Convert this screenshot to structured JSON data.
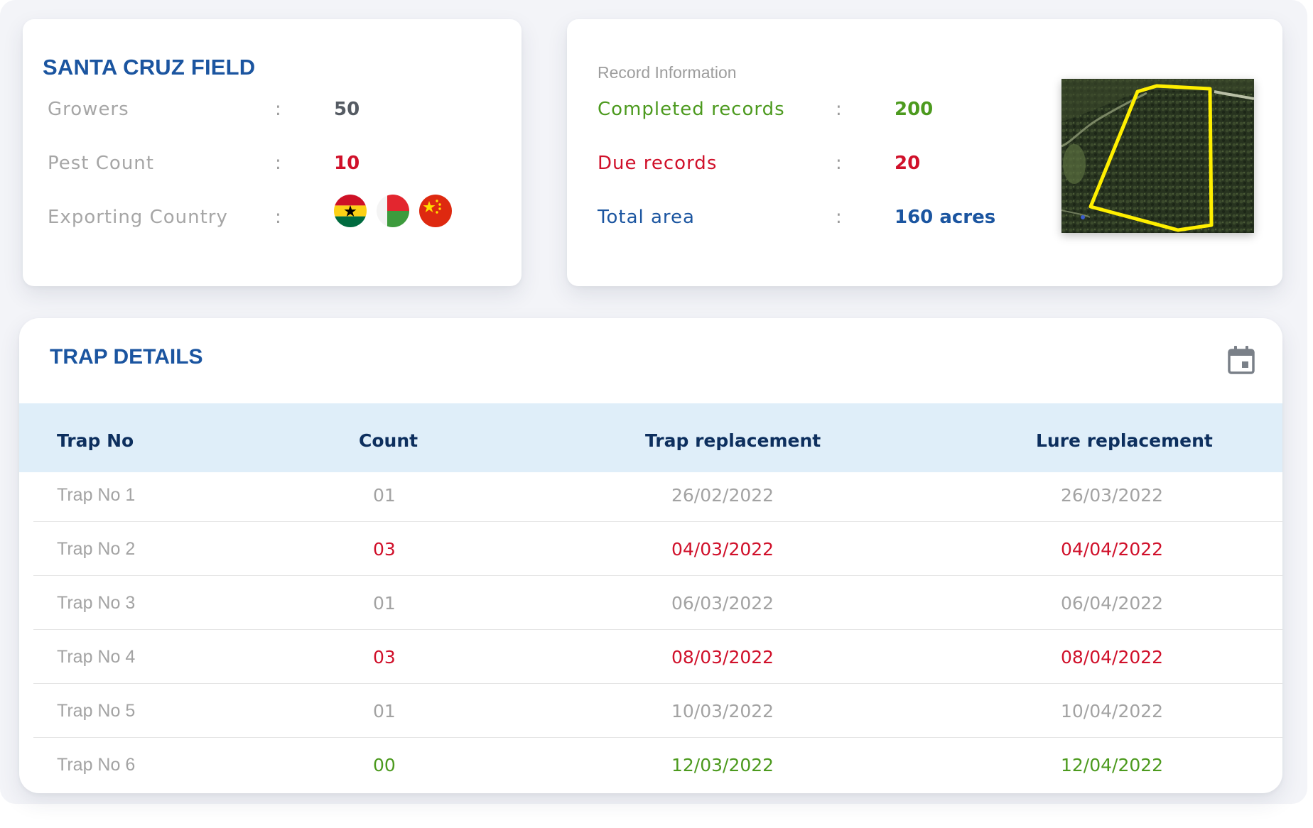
{
  "field": {
    "title": "SANTA CRUZ FIELD",
    "rows": [
      {
        "label": "Growers",
        "colon": ":",
        "value": "50"
      },
      {
        "label": "Pest Count",
        "colon": ":",
        "value": "10"
      },
      {
        "label": "Exporting Country",
        "colon": ":"
      }
    ],
    "flags": [
      "ghana-flag-icon",
      "madagascar-flag-icon",
      "china-flag-icon"
    ]
  },
  "record": {
    "heading": "Record Information",
    "rows": [
      {
        "label": "Completed records",
        "colon": ":",
        "value": "200",
        "color": "#4c9a1e"
      },
      {
        "label": "Due records",
        "colon": ":",
        "value": "20",
        "color": "#d0102a"
      },
      {
        "label": "Total area",
        "colon": ":",
        "value": "160 acres",
        "color": "#1b55a0"
      }
    ]
  },
  "trap": {
    "title": "TRAP DETAILS",
    "columns": [
      "Trap No",
      "Count",
      "Trap replacement",
      "Lure replacement"
    ],
    "rows": [
      {
        "trap": "Trap No 1",
        "count": "01",
        "trap_replacement": "26/02/2022",
        "lure_replacement": "26/03/2022",
        "status": "normal"
      },
      {
        "trap": "Trap No 2",
        "count": "03",
        "trap_replacement": "04/03/2022",
        "lure_replacement": "04/04/2022",
        "status": "alert"
      },
      {
        "trap": "Trap No 3",
        "count": "01",
        "trap_replacement": "06/03/2022",
        "lure_replacement": "06/04/2022",
        "status": "normal"
      },
      {
        "trap": "Trap No 4",
        "count": "03",
        "trap_replacement": "08/03/2022",
        "lure_replacement": "08/04/2022",
        "status": "alert"
      },
      {
        "trap": "Trap No 5",
        "count": "01",
        "trap_replacement": "10/03/2022",
        "lure_replacement": "10/04/2022",
        "status": "normal"
      },
      {
        "trap": "Trap No 6",
        "count": "00",
        "trap_replacement": "12/03/2022",
        "lure_replacement": "12/04/2022",
        "status": "good"
      }
    ]
  },
  "colors": {
    "brand_blue": "#1b55a0",
    "alert_red": "#d0102a",
    "ok_green": "#4c9a1e",
    "muted_gray": "#a3a3a3",
    "header_bg": "#dfeef9"
  }
}
